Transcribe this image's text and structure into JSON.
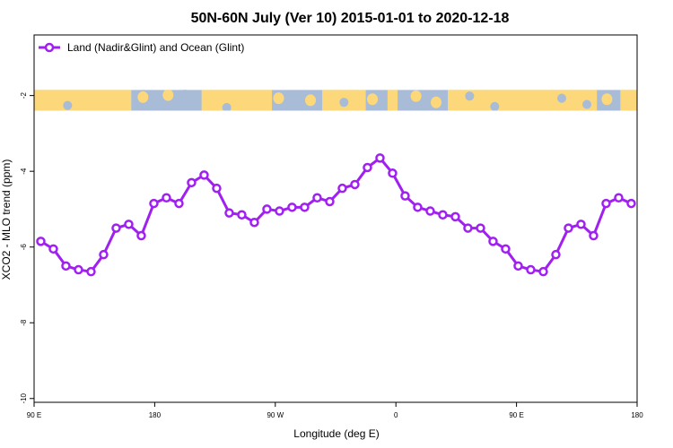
{
  "chart_data": {
    "type": "line",
    "title": "50N-60N July (Ver 10)   2015-01-01 to 2020-12-18",
    "xlabel": "Longitude (deg E)",
    "ylabel": "XCO2 - MLO trend (ppm)",
    "xlim": [
      90,
      450
    ],
    "ylim": [
      -10.1,
      -0.4
    ],
    "x_ticks": [
      {
        "value": 90,
        "label": "90 E"
      },
      {
        "value": 162,
        "label": "180"
      },
      {
        "value": 234,
        "label": "90 W"
      },
      {
        "value": 306,
        "label": "0"
      },
      {
        "value": 378,
        "label": "90 E"
      },
      {
        "value": 450,
        "label": "180"
      }
    ],
    "y_ticks": [
      {
        "value": -2,
        "label": "-2"
      },
      {
        "value": -4,
        "label": "-4"
      },
      {
        "value": -6,
        "label": "-6"
      },
      {
        "value": -8,
        "label": "-8"
      },
      {
        "value": -10,
        "label": "-10"
      }
    ],
    "legend": {
      "placement": "top-left"
    },
    "map_strip": {
      "y_top": -1.85,
      "y_bottom": -2.4,
      "ocean_color": "#a8bcd8",
      "land_color": "#fcd87a"
    },
    "series": [
      {
        "name": "Land (Nadir&Glint) and Ocean (Glint)",
        "color": "#a020f0",
        "x": [
          94,
          101.5,
          109,
          116.5,
          124,
          131.5,
          139,
          146.5,
          154,
          161.5,
          169,
          176.5,
          184,
          191.5,
          199,
          206.5,
          214,
          221.5,
          229,
          236.5,
          244,
          251.5,
          259,
          266.5,
          274,
          281.5,
          289,
          296.5,
          304,
          311.5,
          319,
          326.5,
          334,
          341.5,
          349,
          356.5,
          364,
          371.5,
          379,
          386.5,
          394,
          401.5,
          409,
          416.5,
          424,
          431.5,
          439,
          446.5
        ],
        "values": [
          -5.85,
          -6.05,
          -6.5,
          -6.6,
          -6.65,
          -6.2,
          -5.5,
          -5.4,
          -5.7,
          -4.85,
          -4.7,
          -4.85,
          -4.3,
          -4.1,
          -4.45,
          -5.1,
          -5.15,
          -5.35,
          -5.0,
          -5.05,
          -4.95,
          -4.95,
          -4.7,
          -4.8,
          -4.45,
          -4.35,
          -3.9,
          -3.65,
          -4.05,
          -4.65,
          -4.95,
          -5.05,
          -5.15,
          -5.2,
          -5.5,
          -5.5,
          -5.85,
          -6.05,
          -6.5,
          -6.6,
          -6.65,
          -6.2,
          -5.5,
          -5.4,
          -5.7,
          -4.85,
          -4.7,
          -4.85
        ]
      }
    ]
  }
}
